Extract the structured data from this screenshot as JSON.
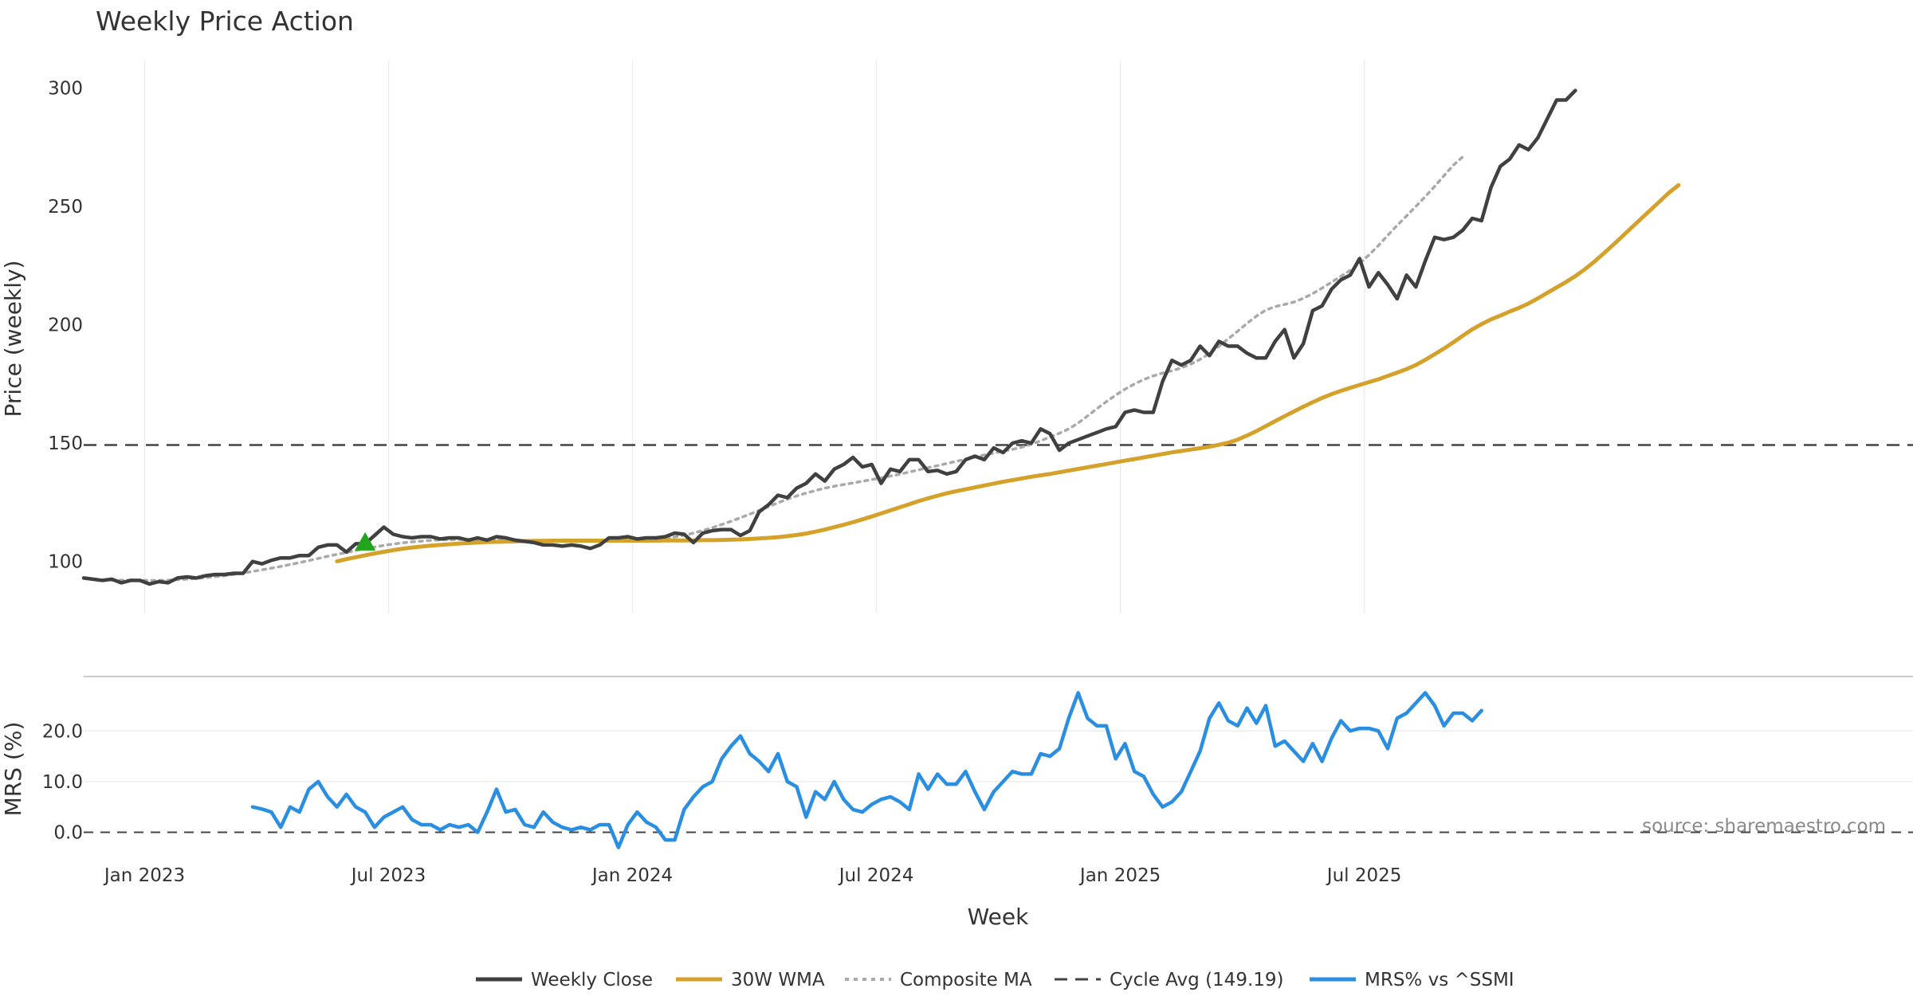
{
  "chart_data": [
    {
      "type": "line",
      "title": "Weekly Price Action",
      "xlabel": "",
      "ylabel": "Price (weekly)",
      "ylim": [
        78,
        312
      ],
      "yticks": [
        100,
        150,
        200,
        250,
        300
      ],
      "grid": "vertical",
      "reference_line": {
        "name": "Cycle Avg (149.19)",
        "value": 149.19,
        "color": "#444444"
      },
      "marker": {
        "name": "buy-signal",
        "x": 30,
        "y": 108,
        "shape": "triangle-up",
        "color": "#22a41c"
      },
      "series": [
        {
          "name": "Weekly Close",
          "color": "#404040",
          "x_start": 0,
          "values": [
            93,
            92.5,
            92,
            92.5,
            91,
            92,
            92,
            90.5,
            91.5,
            91,
            93,
            93.5,
            93,
            94,
            94.5,
            94.5,
            95,
            95,
            100,
            99,
            100.5,
            101.5,
            101.5,
            102.5,
            102.5,
            106,
            107,
            107,
            104,
            107.5,
            107.5,
            111,
            114.5,
            111.5,
            110.5,
            110,
            110.5,
            110.5,
            109.5,
            110,
            110,
            109,
            110,
            109,
            110.5,
            110,
            109,
            108.5,
            108,
            107,
            107,
            106.5,
            107,
            106.5,
            105.5,
            107,
            110,
            110,
            110.5,
            109.5,
            110,
            110,
            110.5,
            112,
            111.5,
            108,
            112,
            113,
            113.5,
            113.5,
            111,
            113,
            121,
            124,
            128,
            127,
            131,
            133,
            137,
            134,
            139,
            141,
            144,
            140,
            141,
            133,
            139,
            138,
            143,
            143,
            138,
            138.5,
            137,
            138,
            143,
            144.5,
            143,
            148,
            146,
            150,
            151,
            150,
            156,
            154,
            147,
            150,
            151.5,
            153,
            154.5,
            156,
            157,
            163,
            164,
            163,
            163,
            176,
            185,
            183,
            185,
            191,
            187,
            193,
            191,
            191,
            188,
            186,
            186,
            193,
            198,
            186,
            192,
            206,
            208,
            215,
            219,
            221,
            228,
            216,
            222,
            217,
            211,
            221,
            216,
            227,
            237,
            236,
            237,
            240,
            245,
            244,
            258,
            267,
            270,
            276,
            274,
            279,
            287,
            295,
            295,
            299
          ]
        },
        {
          "name": "30W WMA",
          "color": "#d4a22b",
          "x_start": 27,
          "values": [
            100.1,
            101,
            101.8,
            102.6,
            103.4,
            104.1,
            104.8,
            105.4,
            105.9,
            106.3,
            106.7,
            107,
            107.3,
            107.6,
            107.8,
            108,
            108.2,
            108.3,
            108.4,
            108.5,
            108.6,
            108.7,
            108.7,
            108.8,
            108.8,
            108.8,
            108.8,
            108.8,
            108.8,
            108.8,
            108.8,
            108.8,
            108.8,
            108.8,
            108.8,
            108.9,
            108.9,
            108.9,
            108.9,
            109,
            109,
            109.1,
            109.2,
            109.3,
            109.5,
            109.7,
            110,
            110.3,
            110.7,
            111.2,
            111.8,
            112.6,
            113.5,
            114.5,
            115.5,
            116.6,
            117.8,
            119,
            120.3,
            121.6,
            122.9,
            124.2,
            125.5,
            126.7,
            127.8,
            128.8,
            129.7,
            130.5,
            131.3,
            132.1,
            132.9,
            133.7,
            134.4,
            135.1,
            135.8,
            136.4,
            137,
            137.7,
            138.4,
            139.1,
            139.8,
            140.5,
            141.2,
            141.9,
            142.6,
            143.3,
            144,
            144.7,
            145.4,
            146.1,
            146.7,
            147.3,
            147.9,
            148.5,
            149.3,
            150.2,
            151.5,
            153.2,
            155.1,
            157.2,
            159.3,
            161.4,
            163.4,
            165.4,
            167.3,
            169.1,
            170.7,
            172.1,
            173.4,
            174.6,
            175.8,
            177,
            178.4,
            179.8,
            181.3,
            183,
            185.2,
            187.6,
            190,
            192.6,
            195.4,
            198.1,
            200.3,
            202.3,
            203.9,
            205.6,
            207.2,
            209,
            211.2,
            213.5,
            215.8,
            218.1,
            220.6,
            223.4,
            226.6,
            230.1,
            233.7,
            237.4,
            241.1,
            244.8,
            248.5,
            252.2,
            255.9,
            259
          ]
        },
        {
          "name": "Composite MA",
          "color": "#aaaaaa",
          "dash": "dotted",
          "x_start": 3,
          "values": [
            92.1,
            92.1,
            92.1,
            92,
            92,
            92,
            92.1,
            92.3,
            92.5,
            92.8,
            93.2,
            93.6,
            94,
            94.5,
            95.1,
            95.8,
            96.5,
            97.2,
            97.9,
            98.7,
            99.5,
            100.4,
            101.3,
            102.2,
            103,
            103.8,
            104.6,
            105.4,
            106.1,
            106.8,
            107.4,
            107.9,
            108.3,
            108.6,
            108.9,
            109.1,
            109.2,
            109.3,
            109.3,
            109.3,
            109.3,
            109.2,
            109.1,
            109,
            108.9,
            108.8,
            108.7,
            108.6,
            108.5,
            108.5,
            108.5,
            108.5,
            108.5,
            108.6,
            108.7,
            108.8,
            108.9,
            109.1,
            109.4,
            109.8,
            110.4,
            111.1,
            112,
            113.1,
            114.3,
            115.6,
            117,
            118.5,
            120,
            121.6,
            123.2,
            124.8,
            126.3,
            127.7,
            128.9,
            130,
            131,
            131.8,
            132.5,
            133.2,
            133.9,
            134.6,
            135.3,
            136.1,
            136.9,
            137.8,
            138.7,
            139.6,
            140.5,
            141.4,
            142.3,
            143.2,
            144.1,
            145,
            145.8,
            146.6,
            147.4,
            148.3,
            149.5,
            151,
            152.6,
            154.2,
            156,
            158.5,
            161.5,
            164.6,
            167.5,
            170.3,
            172.8,
            175,
            176.9,
            178.4,
            179.6,
            180.6,
            181.8,
            183.4,
            185.4,
            187.9,
            190.9,
            194.1,
            197.3,
            200.6,
            203.7,
            206.2,
            207.7,
            208.6,
            209.6,
            211.2,
            213.2,
            215.5,
            218,
            220.5,
            223,
            226,
            229.5,
            233.5,
            237.8,
            242,
            246,
            250,
            254.2,
            258.5,
            263,
            267.5,
            271
          ]
        }
      ]
    },
    {
      "type": "line",
      "title": "",
      "xlabel": "Week",
      "ylabel": "MRS (%)",
      "ylim": [
        -4,
        29
      ],
      "yticks": [
        0,
        10,
        20
      ],
      "ytick_labels": [
        "0.0",
        "10.0",
        "20.0"
      ],
      "xticks": [
        {
          "label": "Jan 2023",
          "x": 6.5
        },
        {
          "label": "Jul 2023",
          "x": 32.5
        },
        {
          "label": "Jan 2024",
          "x": 58.5
        },
        {
          "label": "Jul 2024",
          "x": 84.5
        },
        {
          "label": "Jan 2025",
          "x": 110.5
        },
        {
          "label": "Jul 2025",
          "x": 136.5
        }
      ],
      "reference_line": {
        "value": 0,
        "color": "#444444"
      },
      "annotation": "source: sharemaestro.com",
      "series": [
        {
          "name": "MRS% vs ^SSMI",
          "color": "#2a8fe0",
          "x_start": 18,
          "values": [
            5,
            4.6,
            4,
            1,
            5,
            4,
            8.5,
            10,
            7,
            5,
            7.5,
            5,
            4,
            1,
            3,
            4,
            5,
            2.5,
            1.5,
            1.5,
            0.5,
            1.5,
            1,
            1.5,
            0,
            4,
            8.5,
            4,
            4.5,
            1.5,
            1,
            4,
            2,
            1,
            0.5,
            1,
            0.5,
            1.5,
            1.5,
            -3,
            1.5,
            4,
            2,
            1,
            -1.5,
            -1.5,
            4.5,
            7,
            9,
            10,
            14.5,
            17,
            19,
            15.5,
            14,
            12,
            15.5,
            10,
            9,
            3,
            8,
            6.5,
            10,
            6.5,
            4.5,
            4,
            5.5,
            6.5,
            7,
            6,
            4.5,
            11.5,
            8.5,
            11.5,
            9.5,
            9.5,
            12,
            8,
            4.5,
            8,
            10,
            12,
            11.5,
            11.5,
            15.5,
            15,
            16.5,
            22.5,
            27.5,
            22.5,
            21,
            21,
            14.5,
            17.5,
            12,
            11,
            7.5,
            5,
            6,
            8,
            12,
            16,
            22.5,
            25.5,
            22,
            21,
            24.5,
            21.5,
            25,
            17,
            18,
            16,
            14,
            17.5,
            14,
            18.5,
            22,
            20,
            20.5,
            20.5,
            20,
            16.5,
            22.5,
            23.5,
            25.5,
            27.5,
            25,
            21,
            23.5,
            23.5,
            22,
            24
          ]
        }
      ]
    }
  ],
  "legend": [
    {
      "label": "Weekly Close",
      "color": "#404040",
      "dash": "solid"
    },
    {
      "label": "30W WMA",
      "color": "#d4a22b",
      "dash": "solid"
    },
    {
      "label": "Composite MA",
      "color": "#aaaaaa",
      "dash": "dotted"
    },
    {
      "label": "Cycle Avg (149.19)",
      "color": "#444444",
      "dash": "dashed"
    },
    {
      "label": "MRS% vs ^SSMI",
      "color": "#2a8fe0",
      "dash": "solid"
    }
  ]
}
